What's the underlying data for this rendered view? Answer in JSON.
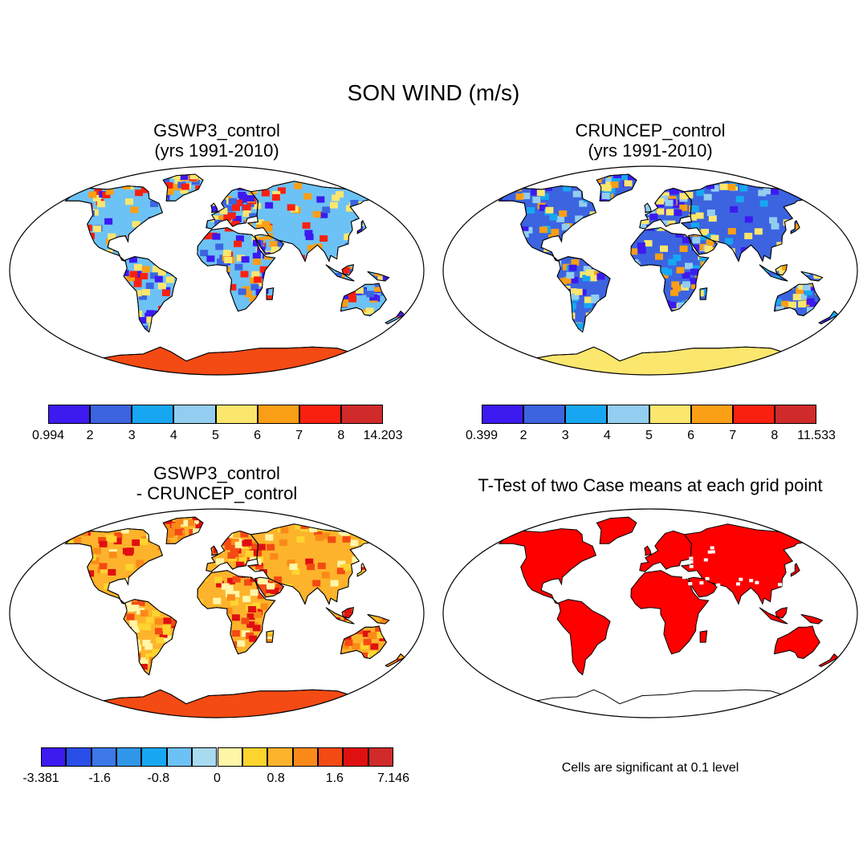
{
  "figure": {
    "title": "SON WIND (m/s)",
    "panels": [
      {
        "id": "a",
        "title": "GSWP3_control\n(yrs 1991-2010)",
        "scheme": "abs1"
      },
      {
        "id": "b",
        "title": "CRUNCEP_control\n (yrs 1991-2010)",
        "scheme": "abs2"
      },
      {
        "id": "c",
        "title": "GSWP3_control\n- CRUNCEP_control",
        "scheme": "diff"
      },
      {
        "id": "d",
        "title": "T-Test of two Case means at each grid point",
        "scheme": "sig"
      }
    ],
    "colorbars": [
      {
        "id": "a",
        "colors": [
          "#3c1af0",
          "#3c64e0",
          "#17a7f2",
          "#93cdef",
          "#fbe66e",
          "#fa9e15",
          "#f92010",
          "#d02a2a"
        ],
        "labels": [
          "0.994",
          "2",
          "3",
          "4",
          "5",
          "6",
          "7",
          "8",
          "14.203"
        ]
      },
      {
        "id": "b",
        "colors": [
          "#3c1af0",
          "#3c64e0",
          "#17a7f2",
          "#93cdef",
          "#fbe66e",
          "#fa9e15",
          "#f92010",
          "#d02a2a"
        ],
        "labels": [
          "0.399",
          "2",
          "3",
          "4",
          "5",
          "6",
          "7",
          "8",
          "11.533"
        ]
      },
      {
        "id": "c",
        "colors": [
          "#3c1af0",
          "#2a4ee8",
          "#3c78e8",
          "#2f96e8",
          "#17a7f2",
          "#6cc2f5",
          "#a8daf0",
          "#fff6a8",
          "#fed42f",
          "#fdb32b",
          "#fa8a18",
          "#f44a14",
          "#e01010",
          "#d02a2a"
        ],
        "labels": [
          "-3.381",
          "-1.6",
          "-0.8",
          "0",
          "0.8",
          "1.6",
          "7.146"
        ]
      }
    ],
    "significance_note": "Cells are significant at 0.1 level",
    "significance_color": "#ff0000"
  }
}
